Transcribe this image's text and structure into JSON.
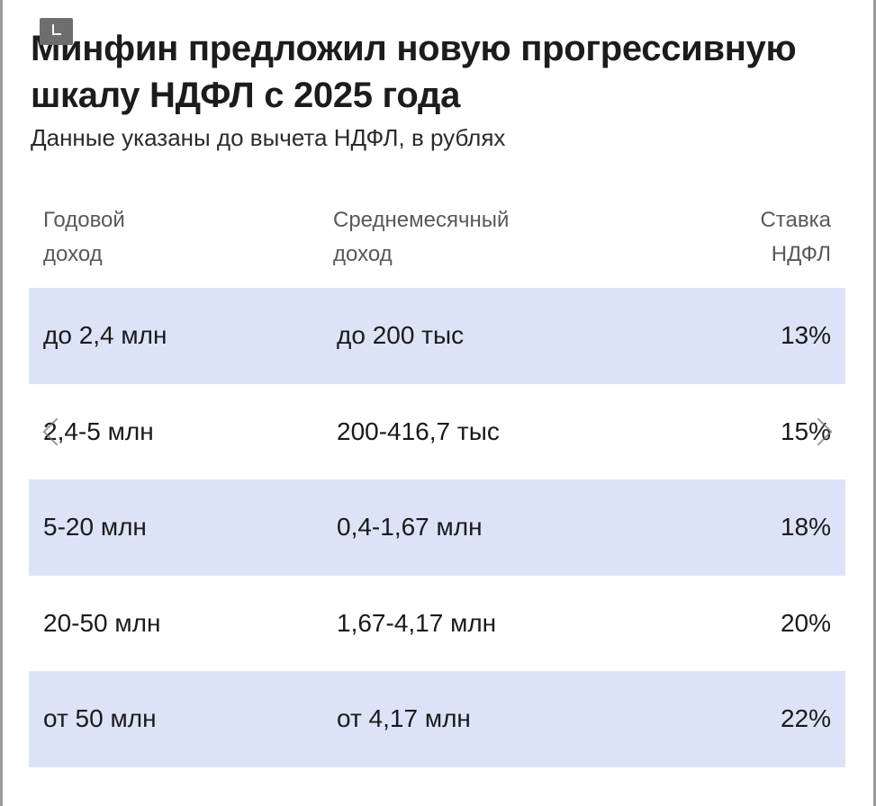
{
  "title": "Минфин предложил новую прогрессивную шкалу НДФЛ с 2025 года",
  "subtitle": "Данные указаны до вычета НДФЛ, в рублях",
  "table": {
    "headers": [
      "Годовой\nдоход",
      "Среднемесячный\nдоход",
      "Ставка\nНДФЛ"
    ],
    "rows": [
      [
        "до 2,4 млн",
        "до 200 тыс",
        "13%"
      ],
      [
        "2,4-5 млн",
        "200-416,7 тыс",
        "15%"
      ],
      [
        "5-20 млн",
        "0,4-1,67 млн",
        "18%"
      ],
      [
        "20-50 млн",
        "1,67-4,17 млн",
        "20%"
      ],
      [
        "от 50 млн",
        "от 4,17 млн",
        "22%"
      ]
    ]
  },
  "colors": {
    "row_shade": "#dde3f7",
    "header_text": "#555a60",
    "body_text": "#1a1a1a"
  },
  "icons": {
    "badge": "checkmark-badge-icon",
    "prev": "chevron-left-icon",
    "next": "chevron-right-icon"
  }
}
